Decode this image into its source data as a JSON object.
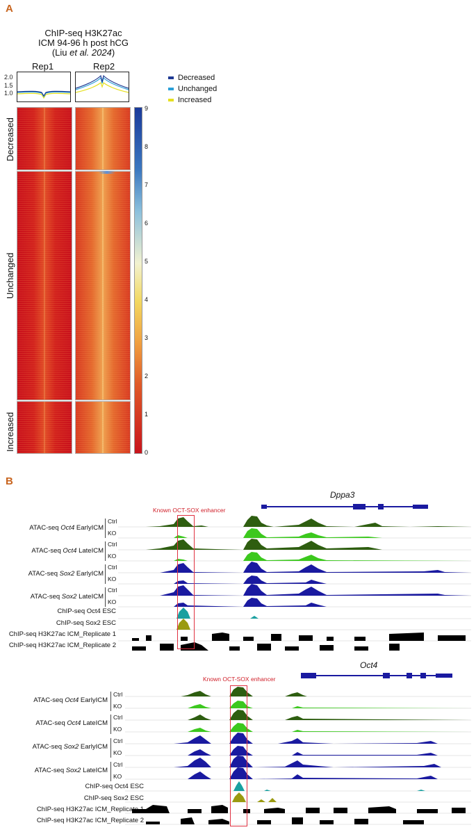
{
  "panel_a": {
    "label": "A",
    "title_line1": "ChIP-seq H3K27ac",
    "title_line2": "ICM 94-96 h post hCG",
    "title_line3_pre": "(Liu ",
    "title_line3_ital": "et al. 2024",
    "title_line3_post": ")",
    "rep1": "Rep1",
    "rep2": "Rep2",
    "profile_yticks": [
      "2.0",
      "1.5",
      "1.0"
    ],
    "groups": [
      "Decreased",
      "Unchanged",
      "Increased"
    ],
    "legend": [
      {
        "label": "Decreased",
        "color": "#1f3a93"
      },
      {
        "label": "Unchanged",
        "color": "#2aa0d8"
      },
      {
        "label": "Increased",
        "color": "#e6e020"
      }
    ],
    "colorbar_ticks": [
      "9",
      "8",
      "7",
      "6",
      "5",
      "4",
      "3",
      "2",
      "1",
      "0"
    ]
  },
  "panel_b": {
    "label": "B",
    "dppa3": {
      "gene": "Dppa3",
      "enhancer": "Known OCT-SOX enhancer",
      "tracks": [
        {
          "pre": "ATAC-seq ",
          "ital": "Oct4",
          "post": " EarlyICM",
          "ctrl": "Ctrl",
          "ko": "KO"
        },
        {
          "pre": "ATAC-seq ",
          "ital": "Oct4",
          "post": " LateICM",
          "ctrl": "Ctrl",
          "ko": "KO"
        },
        {
          "pre": "ATAC-seq ",
          "ital": "Sox2",
          "post": " EarlyICM",
          "ctrl": "Ctrl",
          "ko": "KO"
        },
        {
          "pre": "ATAC-seq ",
          "ital": "Sox2",
          "post": " LateICM",
          "ctrl": "Ctrl",
          "ko": "KO"
        }
      ],
      "single_tracks": [
        "ChIP-seq Oct4 ESC",
        "ChIP-seq Sox2 ESC",
        "ChIP-seq H3K27ac ICM_Replicate 1",
        "ChIP-seq H3K27ac ICM_Replicate 2"
      ]
    },
    "oct4": {
      "gene": "Oct4",
      "enhancer": "Known OCT-SOX enhancer",
      "tracks": [
        {
          "pre": "ATAC-seq ",
          "ital": "Oct4",
          "post": " EarlyICM",
          "ctrl": "Ctrl",
          "ko": "KO"
        },
        {
          "pre": "ATAC-seq ",
          "ital": "Oct4",
          "post": " LateICM",
          "ctrl": "Ctrl",
          "ko": "KO"
        },
        {
          "pre": "ATAC-seq ",
          "ital": "Sox2",
          "post": " EarlyICM",
          "ctrl": "Ctrl",
          "ko": "KO"
        },
        {
          "pre": "ATAC-seq ",
          "ital": "Sox2",
          "post": " LateICM",
          "ctrl": "Ctrl",
          "ko": "KO"
        }
      ],
      "single_tracks": [
        "ChIP-seq Oct4 ESC",
        "ChIP-seq Sox2 ESC",
        "ChIP-seq H3K27ac ICM_Replicate 1",
        "ChIP-seq H3K27ac ICM_Replicate 2"
      ]
    },
    "colors": {
      "atac_oct4_ctrl": "#2e5e10",
      "atac_oct4_ko": "#3cc81e",
      "atac_sox2": "#1a1aa0",
      "chip_oct4": "#1aa0a0",
      "chip_sox2": "#9a9a10",
      "h3k27ac": "#000000",
      "enhancer_box": "#e03040"
    }
  }
}
